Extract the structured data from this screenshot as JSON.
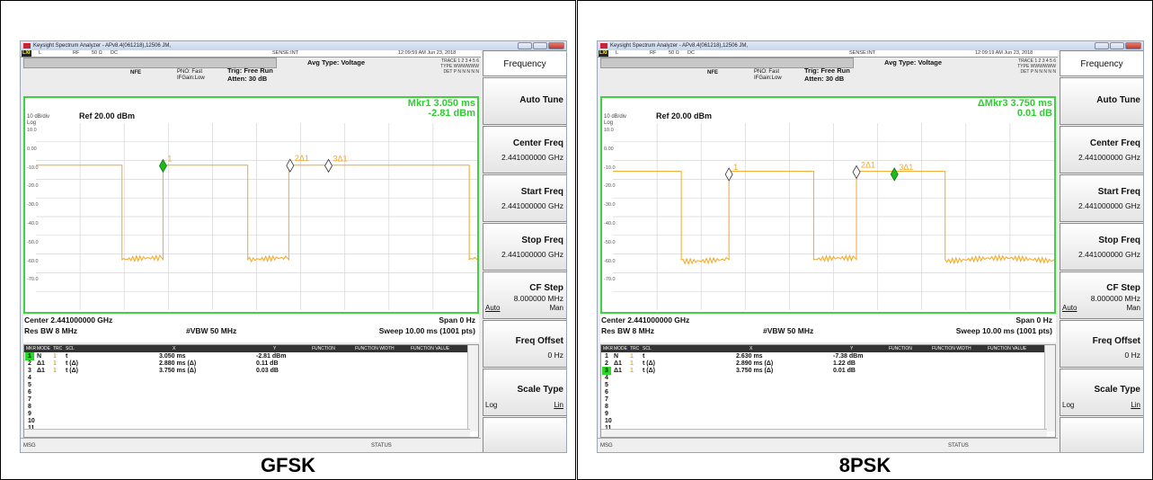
{
  "screens": [
    {
      "caption": "GFSK",
      "title_bar": "Keysight Spectrum Analyzer - APv8.4(061218),12506 JM,",
      "status_strip": {
        "l": "L",
        "rf": "RF",
        "ohm": "50 Ω",
        "dc": "DC",
        "sense": "SENSE:INT",
        "datetime": "12:09:59 AM Jun 23, 2018"
      },
      "settings": {
        "avg": "Avg Type: Voltage",
        "nfe": "NFE",
        "pno": "PNO: Fast",
        "ifgain": "IFGain:Low",
        "trig": "Trig: Free Run",
        "atten": "Atten: 30 dB"
      },
      "trace_block": {
        "trace": "TRACE 1 2 3 4 5 6",
        "type": "TYPE WWWWWW",
        "det": "DET P N N N N N"
      },
      "marker_readout": {
        "line1": "Mkr1 3.050 ms",
        "line2": "-2.81 dBm"
      },
      "scale": {
        "div": "10 dB/div",
        "log": "Log",
        "ref": "Ref 20.00 dBm"
      },
      "y_ticks": [
        "10.0",
        "0.00",
        "-10.0",
        "-20.0",
        "-30.0",
        "-40.0",
        "-50.0",
        "-60.0",
        "-70.0"
      ],
      "markers": [
        {
          "label": "1",
          "active": true
        },
        {
          "label": "2Δ1",
          "active": false
        },
        {
          "label": "3Δ1",
          "active": false
        }
      ],
      "footer": {
        "center": "Center 2.441000000 GHz",
        "span": "Span 0 Hz",
        "res_bw": "Res BW 8 MHz",
        "vbw": "#VBW 50 MHz",
        "sweep": "Sweep  10.00 ms (1001 pts)"
      },
      "table_header": {
        "mkr": "MKR",
        "mode": "MODE",
        "trc": "TRC",
        "scl": "SCL",
        "x": "X",
        "y": "Y",
        "function": "FUNCTION",
        "fwidth": "FUNCTION WIDTH",
        "fvalue": "FUNCTION VALUE"
      },
      "table_rows": [
        {
          "n": "1",
          "mode": "N",
          "trc": "1",
          "scl": "t",
          "x": "3.050 ms",
          "y": "-2.81 dBm",
          "selected": true
        },
        {
          "n": "2",
          "mode": "Δ1",
          "trc": "1",
          "scl": "t  (Δ)",
          "x": "2.880 ms  (Δ)",
          "y": "0.11 dB",
          "selected": false
        },
        {
          "n": "3",
          "mode": "Δ1",
          "trc": "1",
          "scl": "t  (Δ)",
          "x": "3.750 ms  (Δ)",
          "y": "0.03 dB",
          "selected": false
        },
        {
          "n": "4"
        },
        {
          "n": "5"
        },
        {
          "n": "6"
        },
        {
          "n": "7"
        },
        {
          "n": "8"
        },
        {
          "n": "9"
        },
        {
          "n": "10"
        },
        {
          "n": "11"
        }
      ],
      "msg": "MSG",
      "status": "STATUS"
    },
    {
      "caption": "8PSK",
      "title_bar": "Keysight Spectrum Analyzer - APv8.4(061218),12506 JM,",
      "status_strip": {
        "l": "L",
        "rf": "RF",
        "ohm": "50 Ω",
        "dc": "DC",
        "sense": "SENSE:INT",
        "datetime": "12:09:19 AM Jun 23, 2018"
      },
      "settings": {
        "avg": "Avg Type: Voltage",
        "nfe": "NFE",
        "pno": "PNO: Fast",
        "ifgain": "IFGain:Low",
        "trig": "Trig: Free Run",
        "atten": "Atten: 30 dB"
      },
      "trace_block": {
        "trace": "TRACE 1 2 3 4 5 6",
        "type": "TYPE WWWWWW",
        "det": "DET P N N N N N"
      },
      "marker_readout": {
        "line1": "ΔMkr3 3.750 ms",
        "line2": "0.01 dB"
      },
      "scale": {
        "div": "10 dB/div",
        "log": "Log",
        "ref": "Ref 20.00 dBm"
      },
      "y_ticks": [
        "10.0",
        "0.00",
        "-10.0",
        "-20.0",
        "-30.0",
        "-40.0",
        "-50.0",
        "-60.0",
        "-70.0"
      ],
      "markers": [
        {
          "label": "1",
          "active": false
        },
        {
          "label": "2Δ1",
          "active": false
        },
        {
          "label": "3Δ1",
          "active": true
        }
      ],
      "footer": {
        "center": "Center 2.441000000 GHz",
        "span": "Span 0 Hz",
        "res_bw": "Res BW 8 MHz",
        "vbw": "#VBW 50 MHz",
        "sweep": "Sweep  10.00 ms (1001 pts)"
      },
      "table_header": {
        "mkr": "MKR",
        "mode": "MODE",
        "trc": "TRC",
        "scl": "SCL",
        "x": "X",
        "y": "Y",
        "function": "FUNCTION",
        "fwidth": "FUNCTION WIDTH",
        "fvalue": "FUNCTION VALUE"
      },
      "table_rows": [
        {
          "n": "1",
          "mode": "N",
          "trc": "1",
          "scl": "t",
          "x": "2.630 ms",
          "y": "-7.38 dBm",
          "selected": false
        },
        {
          "n": "2",
          "mode": "Δ1",
          "trc": "1",
          "scl": "t  (Δ)",
          "x": "2.890 ms  (Δ)",
          "y": "1.22 dB",
          "selected": false
        },
        {
          "n": "3",
          "mode": "Δ1",
          "trc": "1",
          "scl": "t  (Δ)",
          "x": "3.750 ms  (Δ)",
          "y": "0.01 dB",
          "selected": true
        },
        {
          "n": "4"
        },
        {
          "n": "5"
        },
        {
          "n": "6"
        },
        {
          "n": "7"
        },
        {
          "n": "8"
        },
        {
          "n": "9"
        },
        {
          "n": "10"
        },
        {
          "n": "11"
        }
      ],
      "msg": "MSG",
      "status": "STATUS"
    }
  ],
  "softkeys": {
    "header": "Frequency",
    "auto_tune": "Auto Tune",
    "center_freq": {
      "label": "Center Freq",
      "value": "2.441000000 GHz"
    },
    "start_freq": {
      "label": "Start Freq",
      "value": "2.441000000 GHz"
    },
    "stop_freq": {
      "label": "Stop Freq",
      "value": "2.441000000 GHz"
    },
    "cf_step": {
      "label": "CF Step",
      "value": "8.000000 MHz",
      "auto": "Auto",
      "man": "Man"
    },
    "freq_offset": {
      "label": "Freq Offset",
      "value": "0 Hz"
    },
    "scale_type": {
      "label": "Scale Type",
      "log": "Log",
      "lin": "Lin"
    }
  },
  "colors": {
    "trace": "#f5a623",
    "marker_active": "#1fb81f",
    "frame_green": "#3fd13f",
    "readout_green": "#2ecc2e"
  }
}
